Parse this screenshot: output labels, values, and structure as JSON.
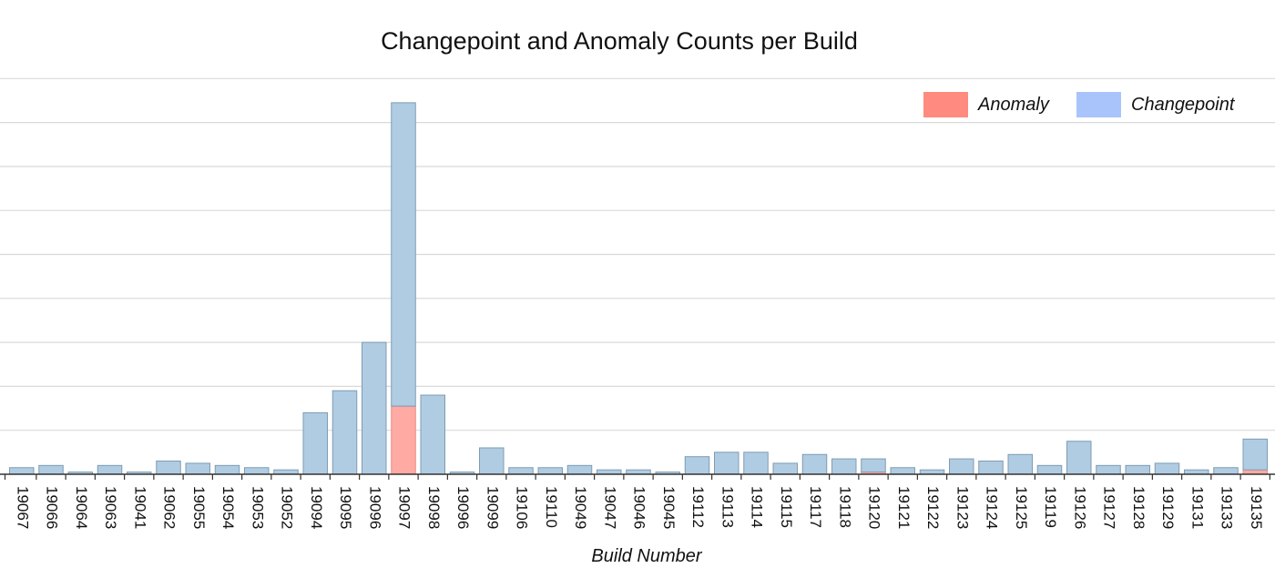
{
  "chart_data": {
    "type": "bar",
    "stacked": true,
    "title": "Changepoint and Anomaly Counts per Build",
    "xlabel": "Build Number",
    "ylabel": "",
    "ylim": [
      0,
      9
    ],
    "grid": true,
    "legend_position": "top-right",
    "categories": [
      "19067",
      "19066",
      "19064",
      "19063",
      "19041",
      "19062",
      "19055",
      "19054",
      "19053",
      "19052",
      "19094",
      "19095",
      "19096",
      "19097",
      "19098",
      "19096",
      "19099",
      "19106",
      "19110",
      "19049",
      "19047",
      "19046",
      "19045",
      "19112",
      "19113",
      "19114",
      "19115",
      "19117",
      "19118",
      "19120",
      "19121",
      "19122",
      "19123",
      "19124",
      "19125",
      "19119",
      "19126",
      "19127",
      "19128",
      "19129",
      "19131",
      "19133",
      "19135"
    ],
    "series": [
      {
        "name": "Anomaly",
        "color": "#ff8a80",
        "values": [
          0,
          0,
          0,
          0,
          0,
          0,
          0,
          0,
          0,
          0,
          0,
          0,
          0,
          1.55,
          0,
          0,
          0,
          0,
          0,
          0,
          0,
          0,
          0,
          0,
          0,
          0,
          0,
          0,
          0,
          0.05,
          0,
          0,
          0,
          0,
          0,
          0,
          0,
          0,
          0,
          0,
          0,
          0,
          0.1
        ]
      },
      {
        "name": "Changepoint",
        "color": "#a8c4fa",
        "values": [
          0.15,
          0.2,
          0.05,
          0.2,
          0.05,
          0.3,
          0.25,
          0.2,
          0.15,
          0.1,
          1.4,
          1.9,
          3.0,
          6.9,
          1.8,
          0.05,
          0.6,
          0.15,
          0.15,
          0.2,
          0.1,
          0.1,
          0.05,
          0.4,
          0.5,
          0.5,
          0.25,
          0.45,
          0.35,
          0.3,
          0.15,
          0.1,
          0.35,
          0.3,
          0.45,
          0.2,
          0.75,
          0.2,
          0.2,
          0.25,
          0.1,
          0.15,
          0.7
        ]
      }
    ]
  }
}
